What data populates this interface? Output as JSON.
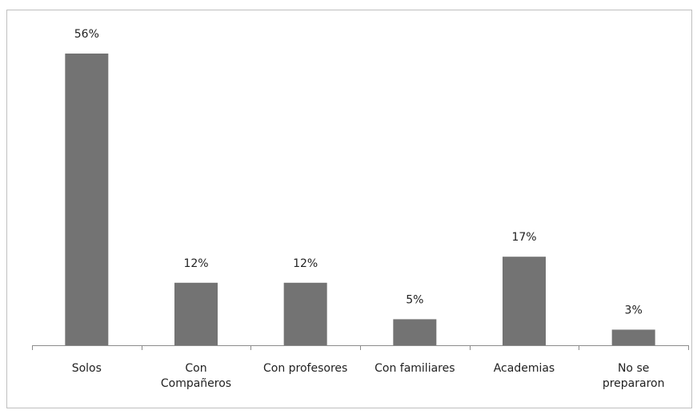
{
  "chart_data": {
    "type": "bar",
    "categories": [
      "Solos",
      "Con\nCompañeros",
      "Con profesores",
      "Con familiares",
      "Academias",
      "No se\nprepararon"
    ],
    "values": [
      56,
      12,
      12,
      5,
      17,
      3
    ],
    "value_labels": [
      "56%",
      "12%",
      "12%",
      "5%",
      "17%",
      "3%"
    ],
    "color": "#737373"
  }
}
